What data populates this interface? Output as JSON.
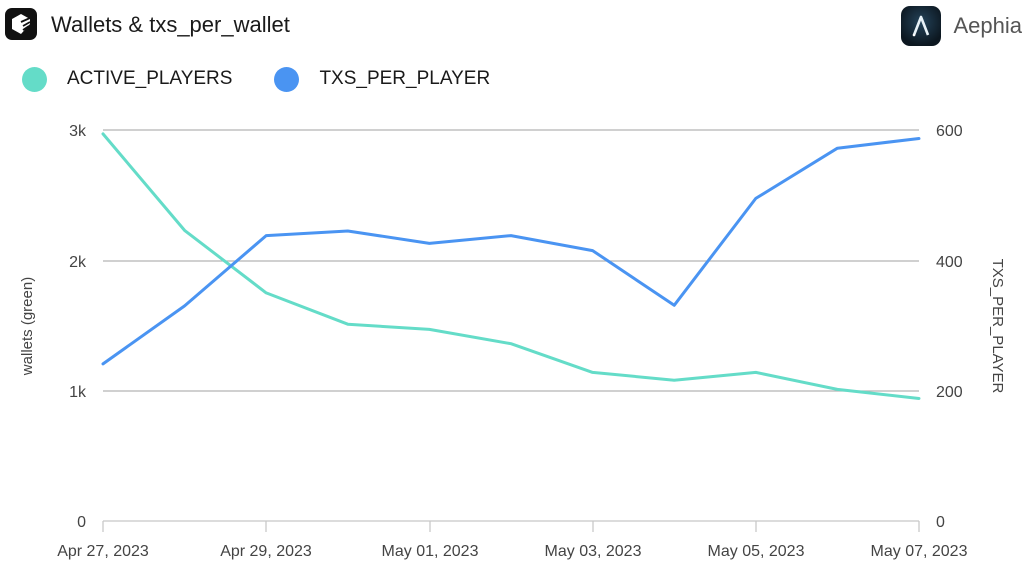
{
  "header": {
    "title": "Wallets & txs_per_wallet",
    "brand": "Aephia"
  },
  "legend": {
    "items": [
      {
        "label": "ACTIVE_PLAYERS",
        "color": "#64dcc8"
      },
      {
        "label": "TXS_PER_PLAYER",
        "color": "#4a94f2"
      }
    ]
  },
  "axes": {
    "left": {
      "title": "wallets (green)",
      "ticks": [
        "0",
        "1k",
        "2k",
        "3k"
      ]
    },
    "right": {
      "title": "TXS_PER_PLAYER",
      "ticks": [
        "0",
        "200",
        "400",
        "600"
      ]
    },
    "x": {
      "ticks": [
        "Apr 27, 2023",
        "Apr 29, 2023",
        "May 01, 2023",
        "May 03, 2023",
        "May 05, 2023",
        "May 07, 2023"
      ]
    }
  },
  "chart_data": {
    "type": "line",
    "title": "Wallets & txs_per_wallet",
    "x": [
      "2023-04-27",
      "2023-04-28",
      "2023-04-29",
      "2023-04-30",
      "2023-05-01",
      "2023-05-02",
      "2023-05-03",
      "2023-05-04",
      "2023-05-05",
      "2023-05-06",
      "2023-05-07"
    ],
    "x_tick_labels": [
      "Apr 27, 2023",
      "Apr 29, 2023",
      "May 01, 2023",
      "May 03, 2023",
      "May 05, 2023",
      "May 07, 2023"
    ],
    "series": [
      {
        "name": "ACTIVE_PLAYERS",
        "axis": "left",
        "color": "#64dcc8",
        "values": [
          2970,
          2230,
          1750,
          1510,
          1470,
          1360,
          1140,
          1080,
          1140,
          1010,
          940
        ]
      },
      {
        "name": "TXS_PER_PLAYER",
        "axis": "right",
        "color": "#4a94f2",
        "values": [
          241,
          330,
          438,
          445,
          426,
          438,
          415,
          331,
          495,
          572,
          587
        ]
      }
    ],
    "ylabel": "wallets (green)",
    "ylabel_right": "TXS_PER_PLAYER",
    "ylim": [
      0,
      3000
    ],
    "ylim_right": [
      0,
      600
    ],
    "y_ticks": [
      "0",
      "1k",
      "2k",
      "3k"
    ],
    "y_ticks_right": [
      "0",
      "200",
      "400",
      "600"
    ],
    "grid": true,
    "legend_position": "top-left"
  }
}
